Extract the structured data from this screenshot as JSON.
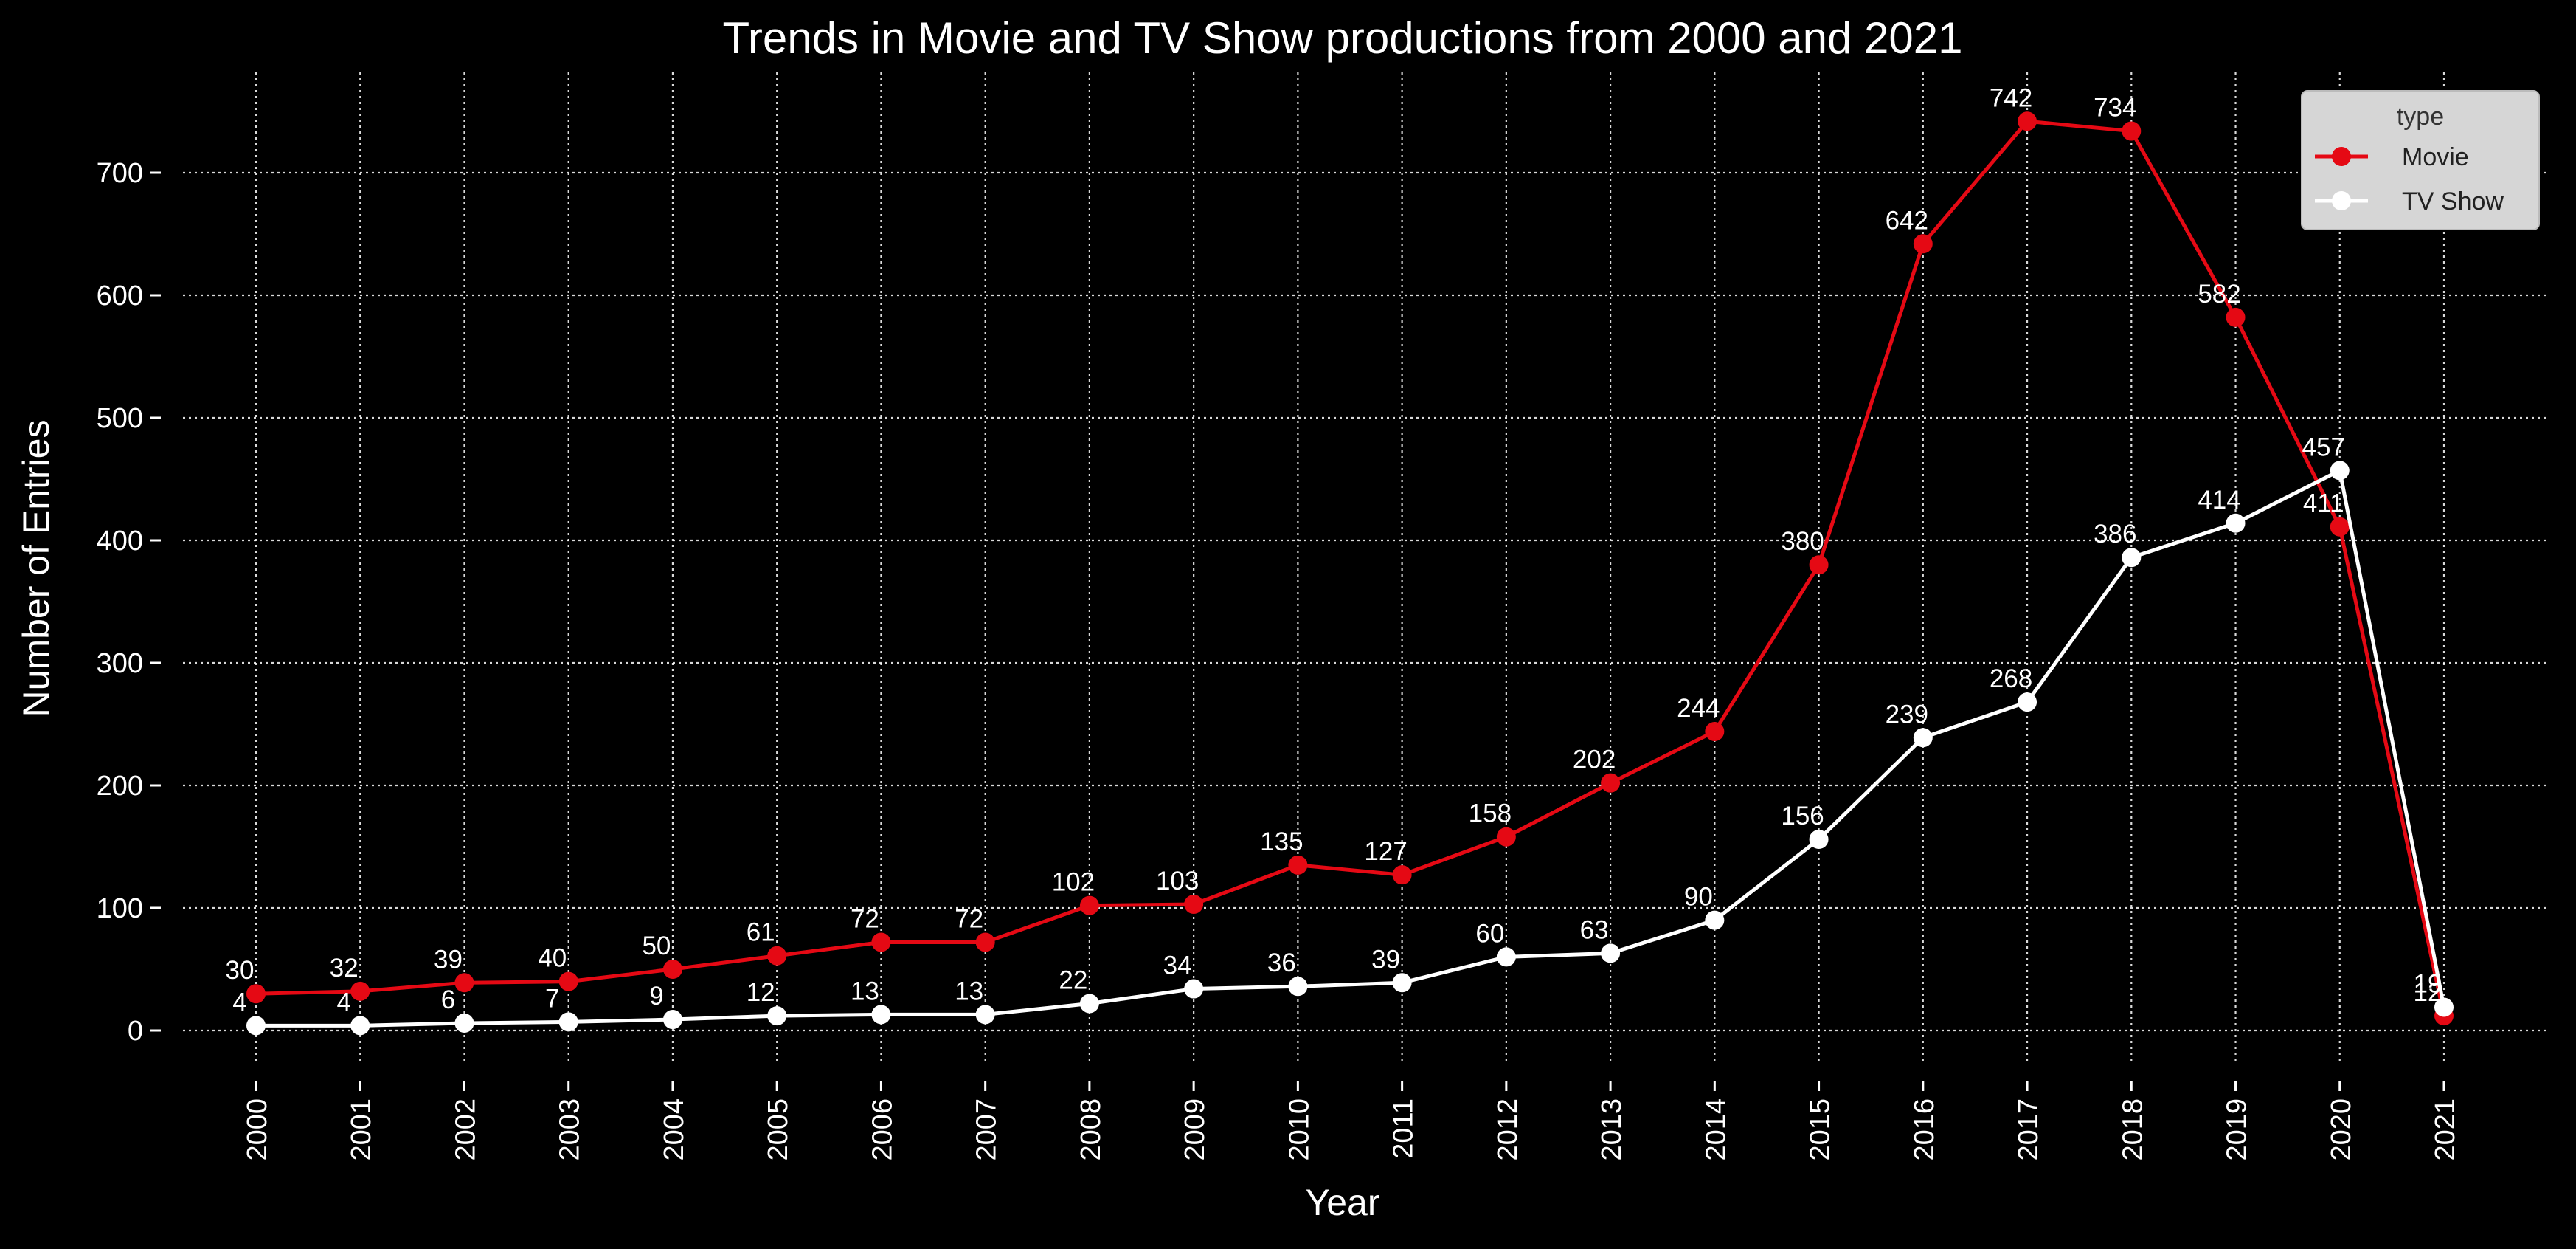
{
  "chart_data": {
    "type": "line",
    "title": "Trends in Movie and TV Show productions from 2000 and 2021",
    "xlabel": "Year",
    "ylabel": "Number of Entries",
    "x": [
      "2000",
      "2001",
      "2002",
      "2003",
      "2004",
      "2005",
      "2006",
      "2007",
      "2008",
      "2009",
      "2010",
      "2011",
      "2012",
      "2013",
      "2014",
      "2015",
      "2016",
      "2017",
      "2018",
      "2019",
      "2020",
      "2021"
    ],
    "series": [
      {
        "name": "Movie",
        "color": "#e50914",
        "values": [
          30,
          32,
          39,
          40,
          50,
          61,
          72,
          72,
          102,
          103,
          135,
          127,
          158,
          202,
          244,
          380,
          642,
          742,
          734,
          582,
          411,
          12
        ]
      },
      {
        "name": "TV Show",
        "color": "#ffffff",
        "values": [
          4,
          4,
          6,
          7,
          9,
          12,
          13,
          13,
          22,
          34,
          36,
          39,
          60,
          63,
          90,
          156,
          239,
          268,
          386,
          414,
          457,
          19
        ]
      }
    ],
    "yticks": [
      0,
      100,
      200,
      300,
      400,
      500,
      600,
      700
    ],
    "ylim": [
      -60,
      780
    ],
    "grid": true,
    "legend": {
      "title": "type",
      "position": "top-right"
    },
    "data_labels": true,
    "background": "#000000"
  }
}
